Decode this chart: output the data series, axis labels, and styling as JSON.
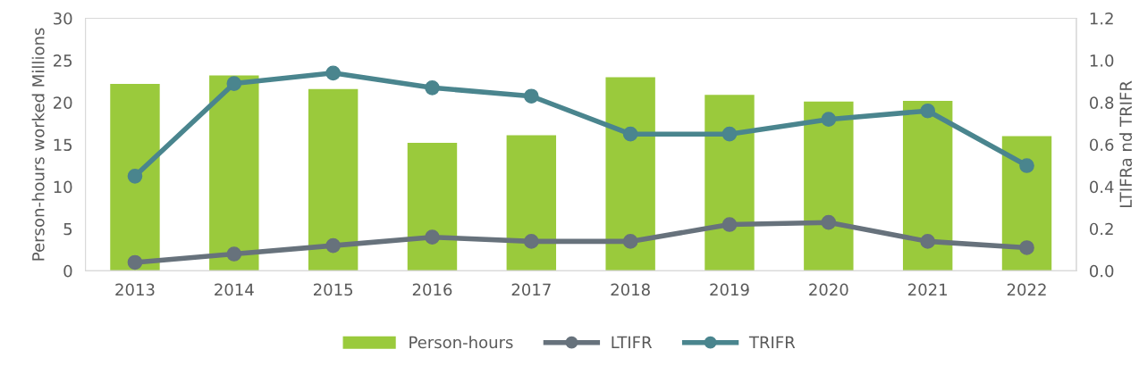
{
  "chart_data": {
    "type": "bar",
    "ylabel": "Person-hours worked Millions",
    "y2label": "LTIFRa nd TRIFR",
    "categories": [
      "2013",
      "2014",
      "2015",
      "2016",
      "2017",
      "2018",
      "2019",
      "2020",
      "2021",
      "2022"
    ],
    "series": [
      {
        "name": "Person-hours",
        "color": "#9aca3c",
        "values": [
          22.2,
          23.2,
          21.6,
          15.2,
          16.1,
          23.0,
          20.9,
          20.1,
          20.2,
          16.0
        ]
      },
      {
        "name": "LTIFR",
        "type": "line",
        "axis": "y2",
        "color": "#67727c",
        "marker": "circle",
        "values": [
          0.04,
          0.08,
          0.12,
          0.16,
          0.14,
          0.14,
          0.22,
          0.23,
          0.14,
          0.11
        ]
      },
      {
        "name": "TRIFR",
        "type": "line",
        "axis": "y2",
        "color": "#4a858e",
        "marker": "circle",
        "values": [
          0.45,
          0.89,
          0.94,
          0.87,
          0.83,
          0.65,
          0.65,
          0.72,
          0.76,
          0.5
        ]
      }
    ],
    "ylim": [
      0,
      30
    ],
    "yticks": [
      0,
      5,
      10,
      15,
      20,
      25,
      30
    ],
    "y2lim": [
      0,
      1.2
    ],
    "y2ticks": [
      {
        "value": 0,
        "label": "0.0"
      },
      {
        "value": 0.2,
        "label": "0.2"
      },
      {
        "value": 0.4,
        "label": "0.4"
      },
      {
        "value": 0.6,
        "label": "0.6"
      },
      {
        "value": 0.8,
        "label": "0.8"
      },
      {
        "value": 1.0,
        "label": "1.0"
      },
      {
        "value": 1.2,
        "label": "1.2"
      }
    ],
    "grid": false,
    "legend": "bottom"
  }
}
